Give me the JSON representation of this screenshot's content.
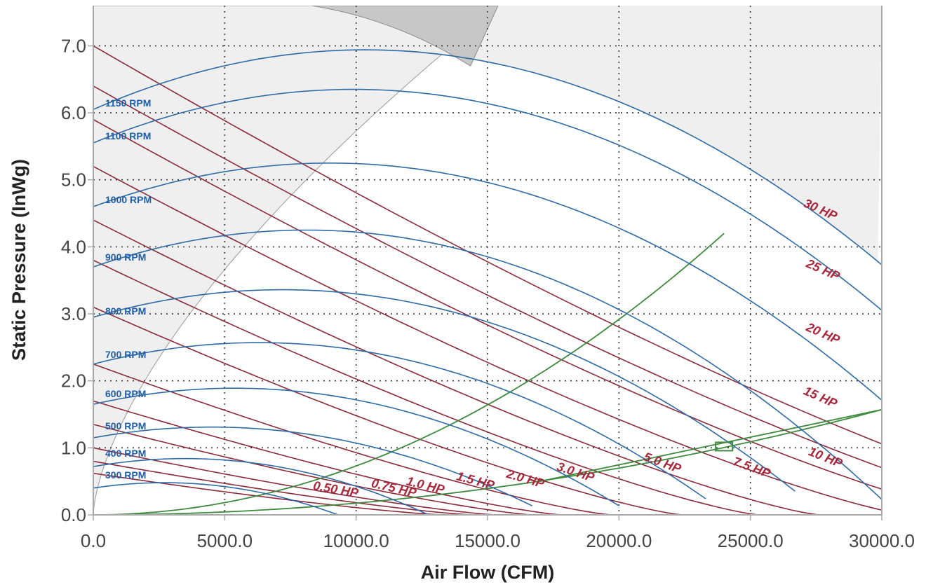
{
  "chart_data": {
    "type": "line",
    "xlabel": "Air Flow (CFM)",
    "ylabel": "Static Pressure (InWg)",
    "xlim": [
      0,
      30000
    ],
    "ylim": [
      0,
      7.6
    ],
    "x_ticks": [
      "0.0",
      "5000.0",
      "10000.0",
      "15000.0",
      "20000.0",
      "25000.0",
      "30000.0"
    ],
    "y_ticks": [
      "0.0",
      "1.0",
      "2.0",
      "3.0",
      "4.0",
      "5.0",
      "6.0",
      "7.0"
    ],
    "x_tick_values": [
      0,
      5000,
      10000,
      15000,
      20000,
      25000,
      30000
    ],
    "y_tick_values": [
      0,
      1,
      2,
      3,
      4,
      5,
      6,
      7
    ],
    "grid": true,
    "rpm_curves": [
      {
        "name": "300 RPM",
        "label": "300 RPM",
        "p0": 0.4,
        "peak_x": 2700,
        "peak_y": 0.48,
        "x_end": 10000
      },
      {
        "name": "400 RPM",
        "label": "400 RPM",
        "p0": 0.72,
        "peak_x": 3500,
        "peak_y": 0.84,
        "x_end": 13300
      },
      {
        "name": "500 RPM",
        "label": "500 RPM",
        "p0": 1.15,
        "peak_x": 4500,
        "peak_y": 1.31,
        "x_end": 16700
      },
      {
        "name": "600 RPM",
        "label": "600 RPM",
        "p0": 1.65,
        "peak_x": 5400,
        "peak_y": 1.89,
        "x_end": 20000
      },
      {
        "name": "700 RPM",
        "label": "700 RPM",
        "p0": 2.25,
        "peak_x": 6300,
        "peak_y": 2.57,
        "x_end": 23300
      },
      {
        "name": "800 RPM",
        "label": "800 RPM",
        "p0": 2.95,
        "peak_x": 7200,
        "peak_y": 3.36,
        "x_end": 26700
      },
      {
        "name": "900 RPM",
        "label": "900 RPM",
        "p0": 3.7,
        "peak_x": 8100,
        "peak_y": 4.25,
        "x_end": 30000
      },
      {
        "name": "1000 RPM",
        "label": "1000 RPM",
        "p0": 4.6,
        "peak_x": 9000,
        "peak_y": 5.25,
        "x_end": 33300
      },
      {
        "name": "1100 RPM",
        "label": "1100 RPM",
        "p0": 5.55,
        "peak_x": 9900,
        "peak_y": 6.35,
        "x_end": 36700
      },
      {
        "name": "1150 RPM",
        "label": "1150 RPM",
        "p0": 6.05,
        "peak_x": 10350,
        "peak_y": 6.94,
        "x_end": 38300
      }
    ],
    "hp_curves": [
      {
        "name": "0.50 HP",
        "label": "0.50 HP",
        "label_x": 9200,
        "label_y": 0.32,
        "angle": -10
      },
      {
        "name": "0.75 HP",
        "label": "0.75 HP",
        "label_x": 11400,
        "label_y": 0.34,
        "angle": -13
      },
      {
        "name": "1.0 HP",
        "label": "1.0 HP",
        "label_x": 12600,
        "label_y": 0.38,
        "angle": -14
      },
      {
        "name": "1.5 HP",
        "label": "1.5 HP",
        "label_x": 14500,
        "label_y": 0.45,
        "angle": -15
      },
      {
        "name": "2.0 HP",
        "label": "2.0 HP",
        "label_x": 16400,
        "label_y": 0.48,
        "angle": -16
      },
      {
        "name": "3.0 HP",
        "label": "3.0 HP",
        "label_x": 18300,
        "label_y": 0.58,
        "angle": -18
      },
      {
        "name": "5.0 HP",
        "label": "5.0 HP",
        "label_x": 21600,
        "label_y": 0.72,
        "angle": -20
      },
      {
        "name": "7.5 HP",
        "label": "7.5 HP",
        "label_x": 25000,
        "label_y": 0.65,
        "angle": -20
      },
      {
        "name": "10 HP",
        "label": "10 HP",
        "label_x": 27800,
        "label_y": 0.8,
        "angle": -22
      },
      {
        "name": "15 HP",
        "label": "15 HP",
        "label_x": 27600,
        "label_y": 1.7,
        "angle": -24
      },
      {
        "name": "20 HP",
        "label": "20 HP",
        "label_x": 27700,
        "label_y": 2.65,
        "angle": -24
      },
      {
        "name": "25 HP",
        "label": "25 HP",
        "label_x": 27700,
        "label_y": 3.6,
        "angle": -24
      },
      {
        "name": "30 HP",
        "label": "30 HP",
        "label_x": 27600,
        "label_y": 4.5,
        "angle": -24
      }
    ],
    "system_curves": [
      {
        "name": "system-curve-1",
        "x": [
          0,
          30000
        ],
        "y": [
          0,
          1.57
        ]
      },
      {
        "name": "system-curve-2",
        "x": [
          0,
          24000
        ],
        "y": [
          0,
          4.2
        ]
      }
    ],
    "operating_point": {
      "x": 24000,
      "y": 1.02
    },
    "colors": {
      "rpm": "#2d6aa6",
      "hp": "#8c2a3c",
      "system": "#3d8a3d",
      "shade": "#efefef",
      "shade_dark": "#c7c7c7",
      "grid": "#333333",
      "axis": "#a9a9a9"
    }
  }
}
